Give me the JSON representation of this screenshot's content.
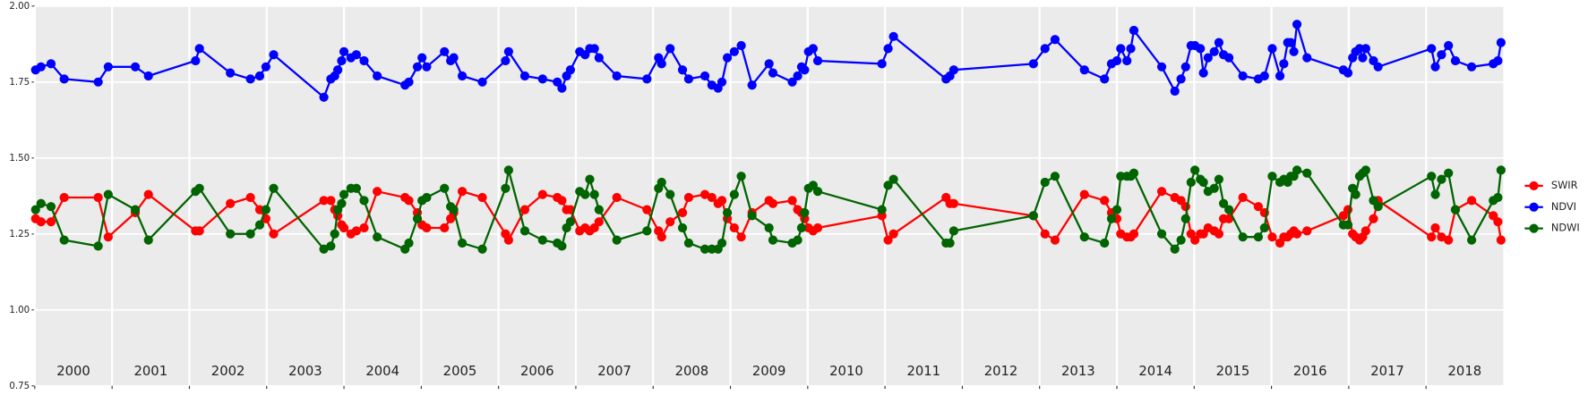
{
  "chart_data": {
    "type": "line",
    "x": [
      2000.01,
      2000.08,
      2000.21,
      2000.38,
      2000.82,
      2000.95,
      2001.3,
      2001.47,
      2002.08,
      2002.13,
      2002.53,
      2002.79,
      2002.91,
      2002.99,
      2003.09,
      2003.74,
      2003.83,
      2003.88,
      2003.92,
      2003.97,
      2004.0,
      2004.09,
      2004.16,
      2004.26,
      2004.43,
      2004.79,
      2004.84,
      2004.95,
      2005.01,
      2005.07,
      2005.3,
      2005.38,
      2005.42,
      2005.53,
      2005.79,
      2006.09,
      2006.13,
      2006.34,
      2006.57,
      2006.76,
      2006.82,
      2006.88,
      2006.93,
      2007.05,
      2007.12,
      2007.18,
      2007.24,
      2007.3,
      2007.53,
      2007.92,
      2008.07,
      2008.11,
      2008.22,
      2008.38,
      2008.46,
      2008.67,
      2008.76,
      2008.84,
      2008.89,
      2008.96,
      2009.05,
      2009.14,
      2009.28,
      2009.5,
      2009.55,
      2009.8,
      2009.87,
      2009.92,
      2009.96,
      2010.01,
      2010.07,
      2010.13,
      2010.96,
      2011.04,
      2011.11,
      2011.79,
      2011.84,
      2011.89,
      2012.92,
      2013.07,
      2013.2,
      2013.58,
      2013.84,
      2013.93,
      2014.0,
      2014.05,
      2014.13,
      2014.18,
      2014.22,
      2014.58,
      2014.75,
      2014.83,
      2014.89,
      2014.96,
      2015.01,
      2015.08,
      2015.12,
      2015.18,
      2015.26,
      2015.32,
      2015.38,
      2015.45,
      2015.63,
      2015.83,
      2015.91,
      2016.01,
      2016.11,
      2016.16,
      2016.21,
      2016.25,
      2016.29,
      2016.33,
      2016.46,
      2016.93,
      2016.99,
      2017.05,
      2017.09,
      2017.14,
      2017.18,
      2017.22,
      2017.32,
      2017.38,
      2018.07,
      2018.12,
      2018.2,
      2018.29,
      2018.38,
      2018.59,
      2018.87,
      2018.93,
      2018.97
    ],
    "series": [
      {
        "name": "SWIR",
        "color": "#ff0000",
        "values": [
          1.3,
          1.29,
          1.29,
          1.37,
          1.37,
          1.24,
          1.32,
          1.38,
          1.26,
          1.26,
          1.35,
          1.37,
          1.33,
          1.3,
          1.25,
          1.36,
          1.36,
          1.33,
          1.31,
          1.28,
          1.27,
          1.25,
          1.26,
          1.27,
          1.39,
          1.37,
          1.36,
          1.32,
          1.28,
          1.27,
          1.27,
          1.3,
          1.32,
          1.39,
          1.37,
          1.25,
          1.23,
          1.33,
          1.38,
          1.37,
          1.36,
          1.33,
          1.33,
          1.26,
          1.27,
          1.26,
          1.27,
          1.29,
          1.37,
          1.33,
          1.26,
          1.24,
          1.29,
          1.32,
          1.37,
          1.38,
          1.37,
          1.35,
          1.36,
          1.3,
          1.27,
          1.24,
          1.32,
          1.36,
          1.35,
          1.36,
          1.33,
          1.32,
          1.3,
          1.27,
          1.26,
          1.27,
          1.31,
          1.23,
          1.25,
          1.37,
          1.35,
          1.35,
          1.31,
          1.25,
          1.23,
          1.38,
          1.36,
          1.32,
          1.3,
          1.25,
          1.24,
          1.24,
          1.25,
          1.39,
          1.37,
          1.36,
          1.34,
          1.25,
          1.23,
          1.25,
          1.25,
          1.27,
          1.26,
          1.25,
          1.3,
          1.3,
          1.37,
          1.34,
          1.32,
          1.24,
          1.22,
          1.24,
          1.24,
          1.25,
          1.26,
          1.25,
          1.26,
          1.31,
          1.33,
          1.25,
          1.24,
          1.23,
          1.24,
          1.26,
          1.3,
          1.36,
          1.24,
          1.27,
          1.24,
          1.23,
          1.33,
          1.36,
          1.31,
          1.29,
          1.23
        ]
      },
      {
        "name": "NDVI",
        "color": "#0000ff",
        "values": [
          1.79,
          1.8,
          1.81,
          1.76,
          1.75,
          1.8,
          1.8,
          1.77,
          1.82,
          1.86,
          1.78,
          1.76,
          1.77,
          1.8,
          1.84,
          1.7,
          1.76,
          1.77,
          1.79,
          1.82,
          1.85,
          1.83,
          1.84,
          1.82,
          1.77,
          1.74,
          1.75,
          1.8,
          1.83,
          1.8,
          1.85,
          1.82,
          1.83,
          1.77,
          1.75,
          1.82,
          1.85,
          1.77,
          1.76,
          1.75,
          1.73,
          1.77,
          1.79,
          1.85,
          1.84,
          1.86,
          1.86,
          1.83,
          1.77,
          1.76,
          1.83,
          1.81,
          1.86,
          1.79,
          1.76,
          1.77,
          1.74,
          1.73,
          1.75,
          1.83,
          1.85,
          1.87,
          1.74,
          1.81,
          1.78,
          1.75,
          1.77,
          1.8,
          1.79,
          1.85,
          1.86,
          1.82,
          1.81,
          1.86,
          1.9,
          1.76,
          1.77,
          1.79,
          1.81,
          1.86,
          1.89,
          1.79,
          1.76,
          1.81,
          1.82,
          1.86,
          1.82,
          1.86,
          1.92,
          1.8,
          1.72,
          1.76,
          1.8,
          1.87,
          1.87,
          1.86,
          1.78,
          1.83,
          1.85,
          1.88,
          1.84,
          1.83,
          1.77,
          1.76,
          1.77,
          1.86,
          1.77,
          1.81,
          1.88,
          1.88,
          1.85,
          1.94,
          1.83,
          1.79,
          1.78,
          1.83,
          1.85,
          1.86,
          1.83,
          1.86,
          1.82,
          1.8,
          1.86,
          1.8,
          1.84,
          1.87,
          1.82,
          1.8,
          1.81,
          1.82,
          1.88
        ]
      },
      {
        "name": "NDWI",
        "color": "#006400",
        "values": [
          1.33,
          1.35,
          1.34,
          1.23,
          1.21,
          1.38,
          1.33,
          1.23,
          1.39,
          1.4,
          1.25,
          1.25,
          1.28,
          1.33,
          1.4,
          1.2,
          1.21,
          1.25,
          1.33,
          1.35,
          1.38,
          1.4,
          1.4,
          1.36,
          1.24,
          1.2,
          1.22,
          1.3,
          1.36,
          1.37,
          1.4,
          1.34,
          1.33,
          1.22,
          1.2,
          1.4,
          1.46,
          1.26,
          1.23,
          1.22,
          1.21,
          1.27,
          1.29,
          1.39,
          1.38,
          1.43,
          1.38,
          1.33,
          1.23,
          1.26,
          1.4,
          1.42,
          1.38,
          1.27,
          1.22,
          1.2,
          1.2,
          1.2,
          1.22,
          1.32,
          1.38,
          1.44,
          1.31,
          1.27,
          1.23,
          1.22,
          1.23,
          1.27,
          1.32,
          1.4,
          1.41,
          1.39,
          1.33,
          1.41,
          1.43,
          1.22,
          1.22,
          1.26,
          1.31,
          1.42,
          1.44,
          1.24,
          1.22,
          1.3,
          1.33,
          1.44,
          1.44,
          1.44,
          1.45,
          1.25,
          1.2,
          1.23,
          1.3,
          1.42,
          1.46,
          1.43,
          1.42,
          1.39,
          1.4,
          1.43,
          1.35,
          1.33,
          1.24,
          1.24,
          1.27,
          1.44,
          1.42,
          1.43,
          1.42,
          1.44,
          1.44,
          1.46,
          1.45,
          1.28,
          1.28,
          1.4,
          1.38,
          1.44,
          1.45,
          1.46,
          1.36,
          1.34,
          1.44,
          1.38,
          1.43,
          1.45,
          1.33,
          1.23,
          1.36,
          1.37,
          1.46
        ]
      }
    ],
    "xlim": [
      2000,
      2019
    ],
    "xticks": [
      2000,
      2001,
      2002,
      2003,
      2004,
      2005,
      2006,
      2007,
      2008,
      2009,
      2010,
      2011,
      2012,
      2013,
      2014,
      2015,
      2016,
      2017,
      2018
    ],
    "ylim": [
      0.75,
      2.0
    ],
    "yticks": [
      {
        "value": 0.75,
        "label": "0.75"
      },
      {
        "value": 1.0,
        "label": "1.00"
      },
      {
        "value": 1.25,
        "label": "1.25"
      },
      {
        "value": 1.5,
        "label": "1.50"
      },
      {
        "value": 1.75,
        "label": "1.75"
      },
      {
        "value": 2.0,
        "label": "2.00"
      }
    ],
    "grid": true,
    "legend": "right"
  }
}
